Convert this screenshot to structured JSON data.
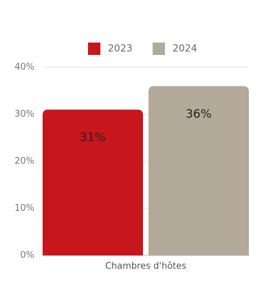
{
  "chart_data": {
    "type": "bar",
    "categories": [
      "Chambres d'hôtes"
    ],
    "series": [
      {
        "name": "2023",
        "color": "#c8161d",
        "values": [
          31
        ],
        "value_labels": [
          "31%"
        ]
      },
      {
        "name": "2024",
        "color": "#b3aa9a",
        "values": [
          36
        ],
        "value_labels": [
          "36%"
        ]
      }
    ],
    "ylim": [
      0,
      40
    ],
    "yticks": [
      {
        "value": 0,
        "label": "0%"
      },
      {
        "value": 10,
        "label": "10%"
      },
      {
        "value": 20,
        "label": "20%"
      },
      {
        "value": 30,
        "label": "30%"
      },
      {
        "value": 40,
        "label": "40%"
      }
    ],
    "grid": true,
    "legend": "top"
  }
}
